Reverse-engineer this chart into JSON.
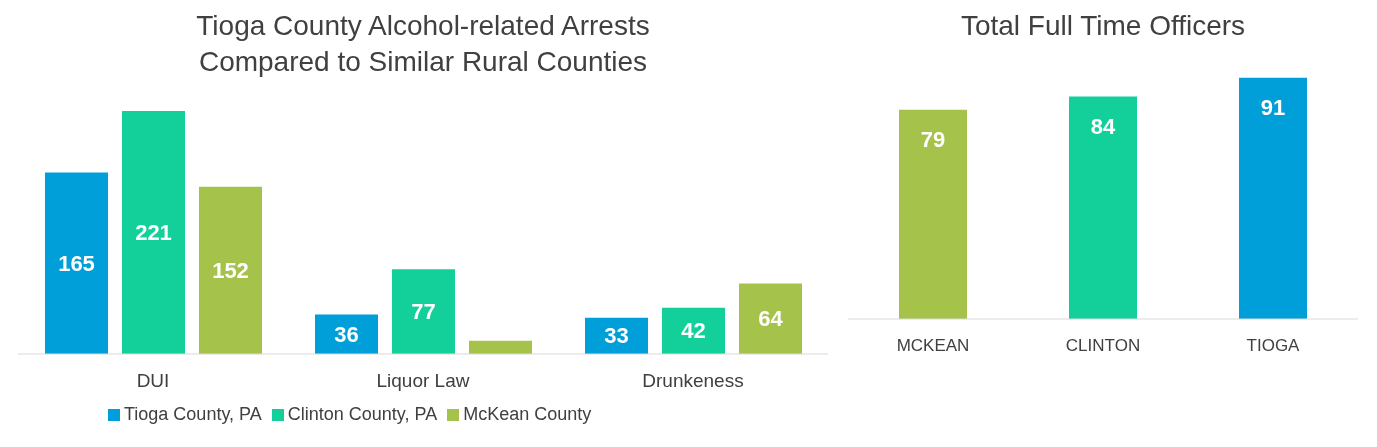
{
  "chart_data": [
    {
      "type": "bar",
      "title": "Tioga County Alcohol-related Arrests Compared to Similar Rural Counties",
      "categories": [
        "DUI",
        "Liquor Law",
        "Drunkeness"
      ],
      "series": [
        {
          "name": "Tioga County, PA",
          "color": "#009fd9",
          "values": [
            165,
            36,
            33
          ],
          "value_labels": [
            "165",
            "36",
            "33"
          ]
        },
        {
          "name": "Clinton County, PA",
          "color": "#13d09a",
          "values": [
            221,
            77,
            42
          ],
          "value_labels": [
            "221",
            "77",
            "42"
          ]
        },
        {
          "name": "McKean County",
          "color": "#a5c24b",
          "values": [
            152,
            12,
            64
          ],
          "value_labels": [
            "152",
            null,
            "64"
          ]
        }
      ],
      "legend": "bottom"
    },
    {
      "type": "bar",
      "title": "Total Full Time Officers",
      "categories": [
        "MCKEAN",
        "CLINTON",
        "TIOGA"
      ],
      "values": [
        79,
        84,
        91
      ],
      "colors": [
        "#a5c24b",
        "#13d09a",
        "#009fd9"
      ],
      "data_labels": true
    }
  ]
}
